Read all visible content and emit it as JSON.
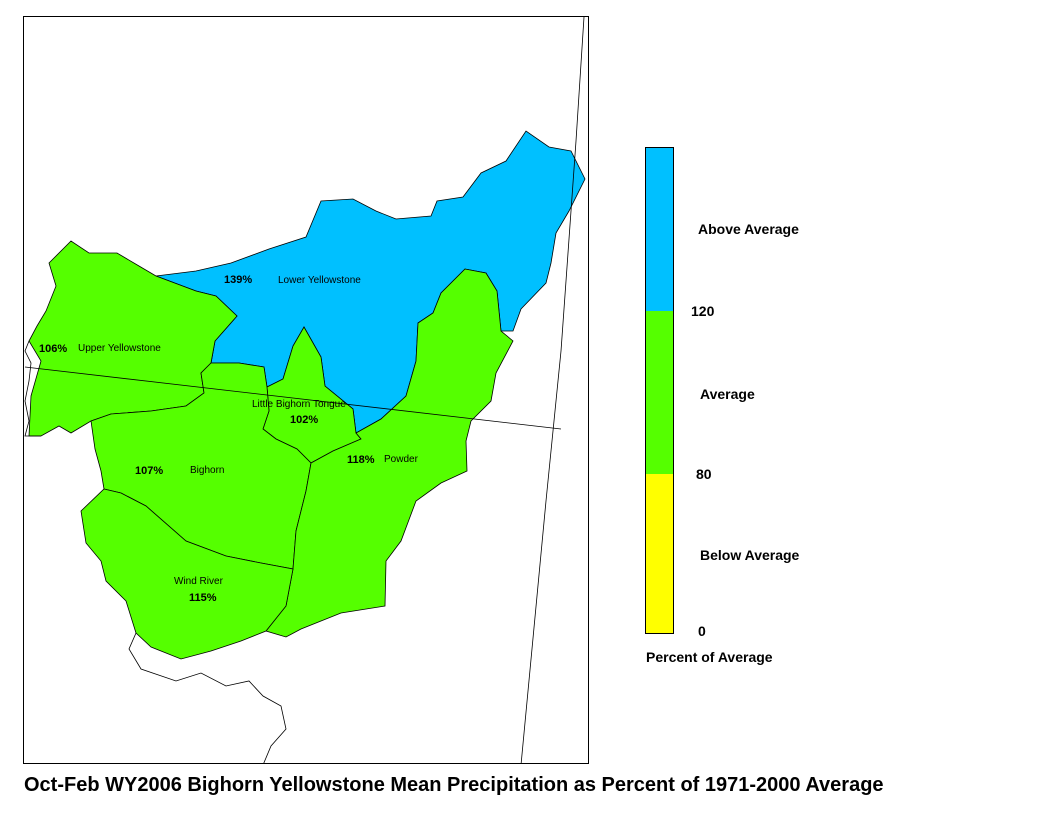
{
  "map": {
    "title": "Oct-Feb WY2006 Bighorn Yellowstone Mean Precipitation as Percent of 1971-2000 Average",
    "basins": [
      {
        "id": "lower-yellowstone",
        "name": "Lower Yellowstone",
        "percent": "139%",
        "category": "above"
      },
      {
        "id": "upper-yellowstone",
        "name": "Upper Yellowstone",
        "percent": "106%",
        "category": "average"
      },
      {
        "id": "little-bighorn-tongue",
        "name": "Little Bighorn Tongue",
        "percent": "102%",
        "category": "average"
      },
      {
        "id": "bighorn",
        "name": "Bighorn",
        "percent": "107%",
        "category": "average"
      },
      {
        "id": "powder",
        "name": "Powder",
        "percent": "118%",
        "category": "average"
      },
      {
        "id": "wind-river",
        "name": "Wind River",
        "percent": "115%",
        "category": "average"
      }
    ]
  },
  "legend": {
    "title": "Percent of Average",
    "categories": [
      {
        "id": "above",
        "label": "Above Average",
        "color": "#00c0ff",
        "min": 120
      },
      {
        "id": "average",
        "label": "Average",
        "color": "#55ff00",
        "min": 80,
        "max": 120
      },
      {
        "id": "below",
        "label": "Below Average",
        "color": "#ffff00",
        "min": 0,
        "max": 80
      }
    ],
    "tick_labels": [
      "120",
      "80",
      "0"
    ]
  }
}
